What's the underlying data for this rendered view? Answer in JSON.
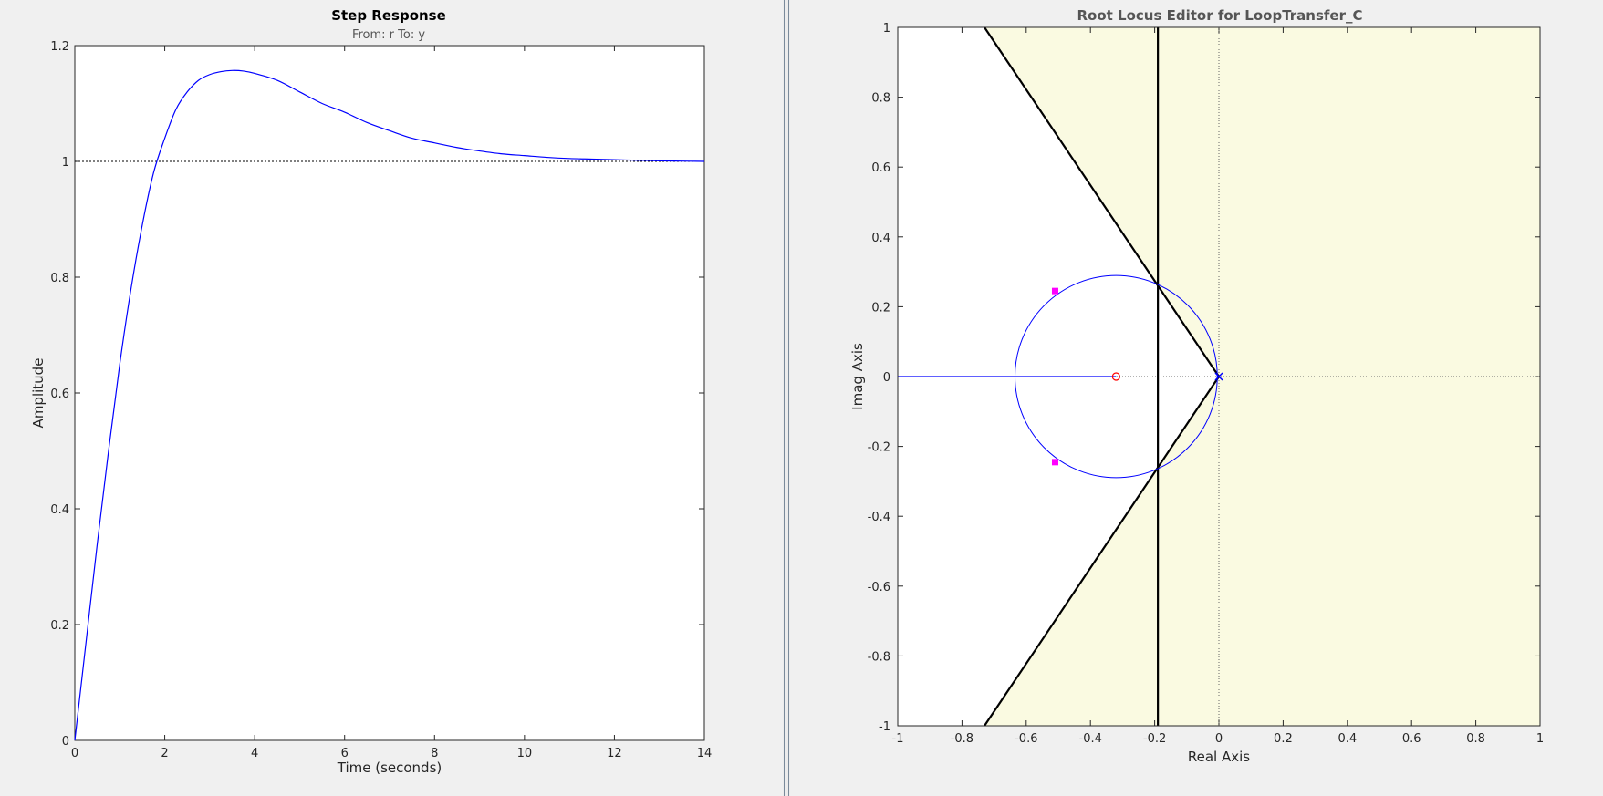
{
  "colors": {
    "background": "#f0f0f0",
    "response_line": "#0000ff",
    "design_region": "#fafae1",
    "closed_loop_pole": "#ff00ff",
    "zero_marker": "#ff0000",
    "pole_marker": "#0000ff",
    "constraint_line": "#000000"
  },
  "left_plot": {
    "title": "Step Response",
    "subtitle": "From: r  To: y",
    "xlabel": "Time (seconds)",
    "ylabel": "Amplitude"
  },
  "right_plot": {
    "title": "Root Locus Editor for LoopTransfer_C",
    "xlabel": "Real Axis",
    "ylabel": "Imag Axis"
  },
  "chart_data": [
    {
      "type": "line",
      "title": "Step Response",
      "subtitle": "From: r  To: y",
      "xlabel": "Time (seconds)",
      "ylabel": "Amplitude",
      "xlim": [
        0,
        14
      ],
      "ylim": [
        0,
        1.2
      ],
      "xticks": [
        0,
        2,
        4,
        6,
        8,
        10,
        12,
        14
      ],
      "yticks": [
        0,
        0.2,
        0.4,
        0.6,
        0.8,
        1,
        1.2
      ],
      "reference_line": 1,
      "grid": false,
      "series": [
        {
          "x": [
            0,
            0.25,
            0.5,
            0.75,
            1,
            1.25,
            1.5,
            1.75,
            2,
            2.25,
            2.5,
            2.75,
            3,
            3.25,
            3.5,
            3.75,
            4,
            4.5,
            5,
            5.5,
            6,
            6.5,
            7,
            7.5,
            8,
            8.5,
            9,
            9.5,
            10,
            10.5,
            11,
            11.5,
            12,
            12.5,
            13,
            13.5,
            14
          ],
          "y": [
            0,
            0.17,
            0.34,
            0.5,
            0.65,
            0.78,
            0.89,
            0.98,
            1.04,
            1.09,
            1.12,
            1.14,
            1.15,
            1.155,
            1.157,
            1.156,
            1.152,
            1.14,
            1.12,
            1.1,
            1.085,
            1.067,
            1.053,
            1.04,
            1.032,
            1.024,
            1.018,
            1.013,
            1.01,
            1.007,
            1.005,
            1.004,
            1.003,
            1.002,
            1.001,
            1.0005,
            1.0
          ]
        }
      ]
    },
    {
      "type": "scatter",
      "title": "Root Locus Editor for LoopTransfer_C",
      "xlabel": "Real Axis",
      "ylabel": "Imag Axis",
      "xlim": [
        -1,
        1
      ],
      "ylim": [
        -1,
        1
      ],
      "xticks": [
        -1,
        -0.8,
        -0.6,
        -0.4,
        -0.2,
        0,
        0.2,
        0.4,
        0.6,
        0.8,
        1
      ],
      "yticks": [
        -1,
        -0.8,
        -0.6,
        -0.4,
        -0.2,
        0,
        0.2,
        0.4,
        0.6,
        0.8,
        1
      ],
      "grid": false,
      "open_loop_zero": [
        -0.32,
        0
      ],
      "open_loop_pole": [
        0,
        0
      ],
      "closed_loop_poles": [
        [
          -0.51,
          0.245
        ],
        [
          -0.51,
          -0.245
        ]
      ],
      "locus_circle": {
        "center": [
          -0.32,
          0
        ],
        "radius": 0.315
      },
      "locus_real_axis": [
        -1,
        -0.32
      ],
      "settling_time_bound_real": -0.19,
      "damping_lines": [
        [
          [
            0,
            0
          ],
          [
            -0.73,
            1
          ]
        ],
        [
          [
            0,
            0
          ],
          [
            -0.73,
            -1
          ]
        ]
      ]
    }
  ]
}
